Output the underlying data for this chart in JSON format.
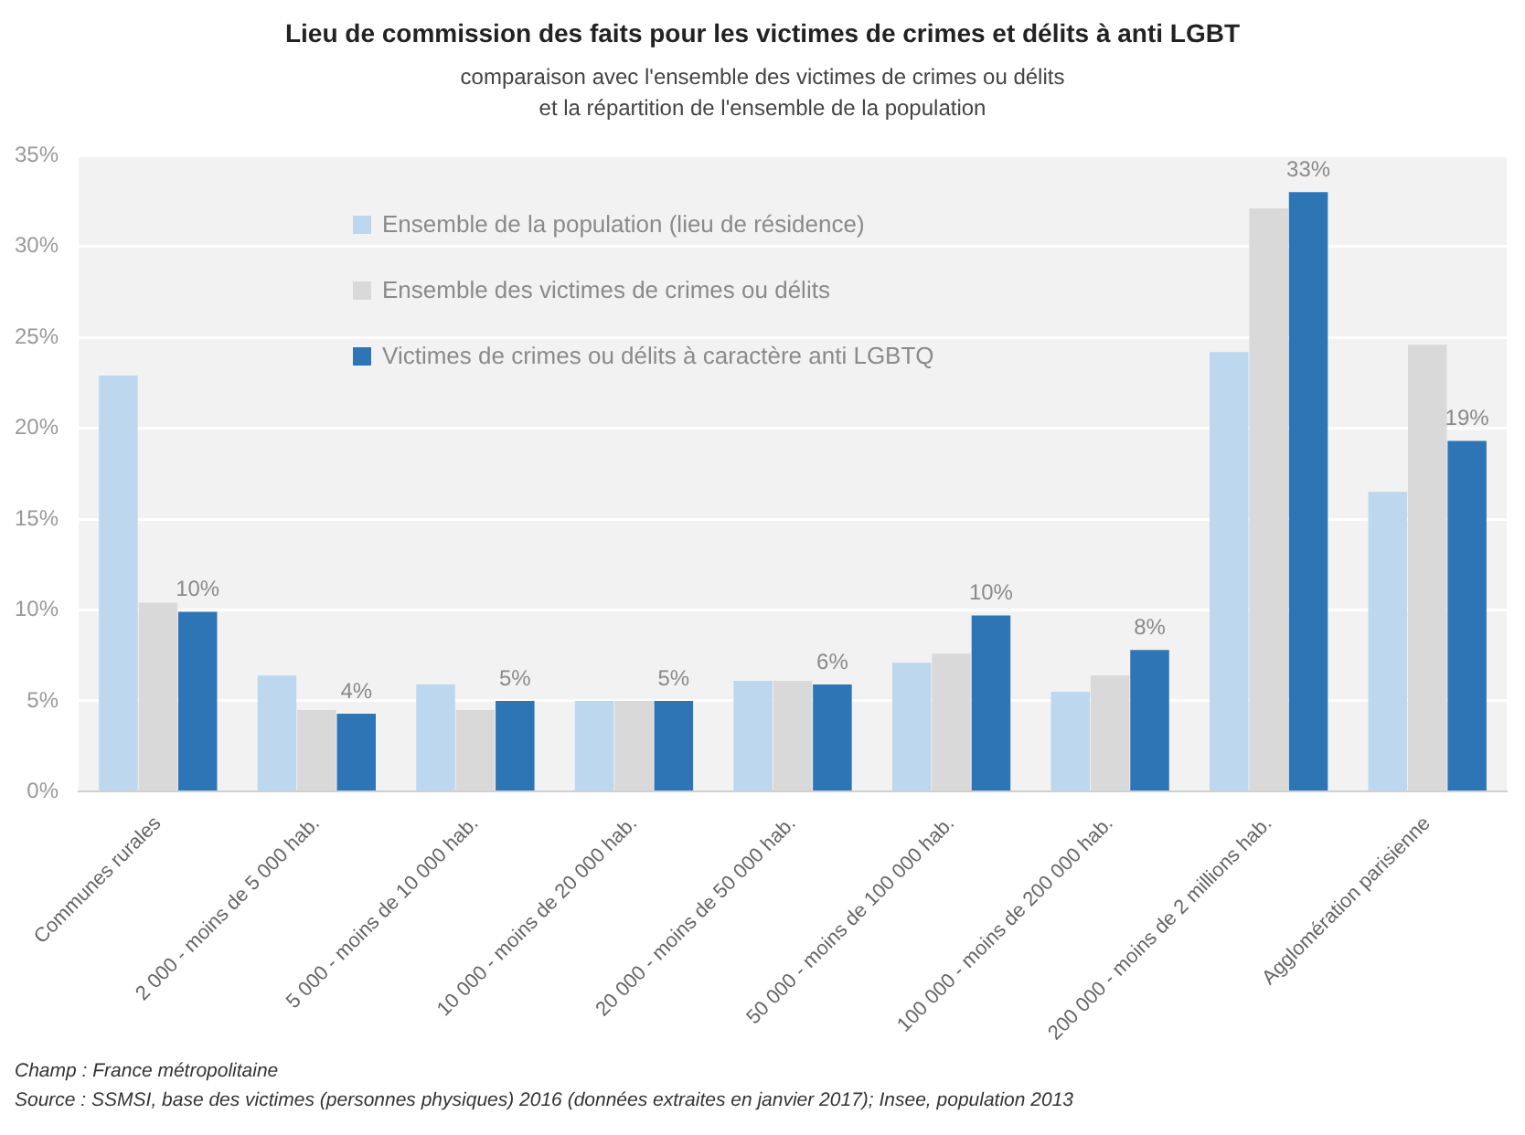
{
  "chart_data": {
    "type": "bar",
    "title": "Lieu de commission des faits pour les victimes de crimes et délits à anti LGBT",
    "subtitle": "comparaison avec l'ensemble des victimes de crimes ou délits\net la répartition de l'ensemble de la population",
    "categories": [
      "Communes rurales",
      "2 000 - moins de 5 000 hab.",
      "5 000 - moins de 10 000 hab.",
      "10 000 - moins de 20 000 hab.",
      "20 000 - moins de 50 000 hab.",
      "50 000 - moins de 100 000 hab.",
      "100 000 - moins de 200 000 hab.",
      "200 000 - moins de 2 millions hab.",
      "Agglomération parisienne"
    ],
    "series": [
      {
        "name": "Ensemble de la population (lieu de résidence)",
        "color": "#bdd7ee",
        "values": [
          22.9,
          6.4,
          5.9,
          5.0,
          6.1,
          7.1,
          5.5,
          24.2,
          16.5
        ]
      },
      {
        "name": "Ensemble des victimes de crimes ou délits",
        "color": "#d9d9d9",
        "values": [
          10.4,
          4.5,
          4.5,
          5.0,
          6.1,
          7.6,
          6.4,
          32.1,
          24.6
        ]
      },
      {
        "name": "Victimes de crimes ou délits à caractère anti LGBTQ",
        "color": "#2e75b6",
        "values": [
          9.9,
          4.3,
          5.0,
          5.0,
          5.9,
          9.7,
          7.8,
          33.0,
          19.3
        ],
        "value_labels": [
          "10%",
          "4%",
          "5%",
          "5%",
          "6%",
          "10%",
          "8%",
          "33%",
          "19%"
        ]
      }
    ],
    "ylim": [
      0,
      35
    ],
    "yticks": [
      {
        "value": 0,
        "label": "0%"
      },
      {
        "value": 5,
        "label": "5%"
      },
      {
        "value": 10,
        "label": "10%"
      },
      {
        "value": 15,
        "label": "15%"
      },
      {
        "value": 20,
        "label": "20%"
      },
      {
        "value": 25,
        "label": "25%"
      },
      {
        "value": 30,
        "label": "30%"
      },
      {
        "value": 35,
        "label": "35%"
      }
    ],
    "grid": "y",
    "legend": "top left",
    "annotations": [
      "Champ : France métropolitaine",
      "Source : SSMSI, base des victimes (personnes physiques) 2016 (données extraites en janvier 2017); Insee, population 2013"
    ]
  }
}
